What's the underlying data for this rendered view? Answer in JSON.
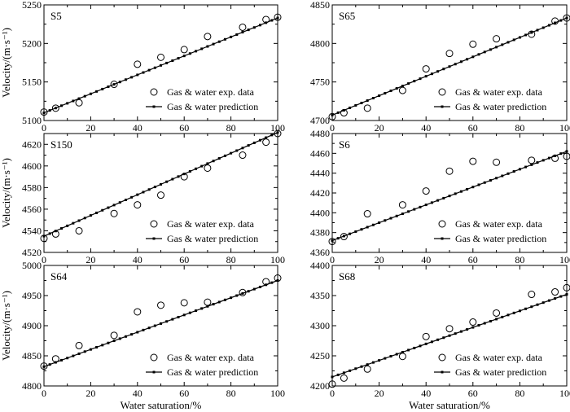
{
  "chart_data": [
    {
      "type": "scatter",
      "title": "S5",
      "xlabel": "",
      "ylabel": "Velocity/(m·s⁻¹)",
      "xlim": [
        0,
        100
      ],
      "ylim": [
        5100,
        5250
      ],
      "xticks": [
        0,
        20,
        40,
        60,
        80,
        100
      ],
      "yticks": [
        5100,
        5150,
        5200,
        5250
      ],
      "legend_position": "lower-right",
      "series": [
        {
          "name": "Gas & water exp. data",
          "style": "open-circle",
          "x": [
            0,
            5,
            15,
            30,
            40,
            50,
            60,
            70,
            85,
            95,
            100
          ],
          "y": [
            5111,
            5116,
            5123,
            5147,
            5173,
            5182,
            5192,
            5209,
            5221,
            5231,
            5234
          ]
        },
        {
          "name": "Gas & water prediction",
          "style": "line-square",
          "x": [
            0,
            100
          ],
          "y": [
            5110,
            5233
          ]
        }
      ]
    },
    {
      "type": "scatter",
      "title": "S65",
      "xlabel": "",
      "ylabel": "",
      "xlim": [
        0,
        100
      ],
      "ylim": [
        4700,
        4850
      ],
      "xticks": [
        0,
        20,
        40,
        60,
        80,
        100
      ],
      "yticks": [
        4700,
        4750,
        4800,
        4850
      ],
      "legend_position": "lower-right",
      "series": [
        {
          "name": "Gas & water exp. data",
          "style": "open-circle",
          "x": [
            0,
            5,
            15,
            30,
            40,
            50,
            60,
            70,
            85,
            95,
            100
          ],
          "y": [
            4705,
            4710,
            4716,
            4739,
            4767,
            4787,
            4799,
            4806,
            4812,
            4829,
            4833
          ]
        },
        {
          "name": "Gas & water prediction",
          "style": "line-square",
          "x": [
            0,
            100
          ],
          "y": [
            4707,
            4833
          ]
        }
      ]
    },
    {
      "type": "scatter",
      "title": "S150",
      "xlabel": "",
      "ylabel": "Velocity/(m·s⁻¹)",
      "xlim": [
        0,
        100
      ],
      "ylim": [
        4520,
        4630
      ],
      "xticks": [
        0,
        20,
        40,
        60,
        80,
        100
      ],
      "yticks": [
        4520,
        4540,
        4560,
        4580,
        4600,
        4620
      ],
      "legend_position": "lower-right",
      "series": [
        {
          "name": "Gas & water exp. data",
          "style": "open-circle",
          "x": [
            0,
            5,
            15,
            30,
            40,
            50,
            60,
            70,
            85,
            95,
            100
          ],
          "y": [
            4533,
            4537,
            4540,
            4556,
            4564,
            4573,
            4590,
            4598,
            4610,
            4622,
            4630
          ]
        },
        {
          "name": "Gas & water prediction",
          "style": "line-square",
          "x": [
            0,
            100
          ],
          "y": [
            4535,
            4631
          ]
        }
      ]
    },
    {
      "type": "scatter",
      "title": "S6",
      "xlabel": "",
      "ylabel": "",
      "xlim": [
        0,
        100
      ],
      "ylim": [
        4360,
        4480
      ],
      "xticks": [
        0,
        20,
        40,
        60,
        80,
        100
      ],
      "yticks": [
        4360,
        4380,
        4400,
        4420,
        4440,
        4460,
        4480
      ],
      "legend_position": "lower-right",
      "series": [
        {
          "name": "Gas & water exp. data",
          "style": "open-circle",
          "x": [
            0,
            5,
            15,
            30,
            40,
            50,
            60,
            70,
            85,
            95,
            100
          ],
          "y": [
            4371,
            4376,
            4399,
            4408,
            4422,
            4442,
            4452,
            4451,
            4453,
            4455,
            4457
          ]
        },
        {
          "name": "Gas & water prediction",
          "style": "line-square",
          "x": [
            0,
            100
          ],
          "y": [
            4372,
            4462
          ]
        }
      ]
    },
    {
      "type": "scatter",
      "title": "S64",
      "xlabel": "Water saturation/%",
      "ylabel": "Velocity/(m·s⁻¹)",
      "xlim": [
        0,
        100
      ],
      "ylim": [
        4800,
        5000
      ],
      "xticks": [
        0,
        20,
        40,
        60,
        80,
        100
      ],
      "yticks": [
        4800,
        4850,
        4900,
        4950,
        5000
      ],
      "legend_position": "lower-right",
      "series": [
        {
          "name": "Gas & water exp. data",
          "style": "open-circle",
          "x": [
            0,
            5,
            15,
            30,
            40,
            50,
            60,
            70,
            85,
            95,
            100
          ],
          "y": [
            4833,
            4845,
            4867,
            4884,
            4923,
            4934,
            4938,
            4939,
            4955,
            4973,
            4979
          ]
        },
        {
          "name": "Gas & water prediction",
          "style": "line-square",
          "x": [
            0,
            100
          ],
          "y": [
            4832,
            4975
          ]
        }
      ]
    },
    {
      "type": "scatter",
      "title": "S68",
      "xlabel": "Water saturation/%",
      "ylabel": "",
      "xlim": [
        0,
        100
      ],
      "ylim": [
        4200,
        4400
      ],
      "xticks": [
        0,
        20,
        40,
        60,
        80,
        100
      ],
      "yticks": [
        4200,
        4250,
        4300,
        4350,
        4400
      ],
      "legend_position": "lower-right",
      "series": [
        {
          "name": "Gas & water exp. data",
          "style": "open-circle",
          "x": [
            0,
            5,
            15,
            30,
            40,
            50,
            60,
            70,
            85,
            95,
            100
          ],
          "y": [
            4203,
            4213,
            4228,
            4249,
            4282,
            4295,
            4306,
            4321,
            4352,
            4356,
            4363
          ]
        },
        {
          "name": "Gas & water prediction",
          "style": "line-square",
          "x": [
            0,
            100
          ],
          "y": [
            4215,
            4352
          ]
        }
      ]
    }
  ]
}
